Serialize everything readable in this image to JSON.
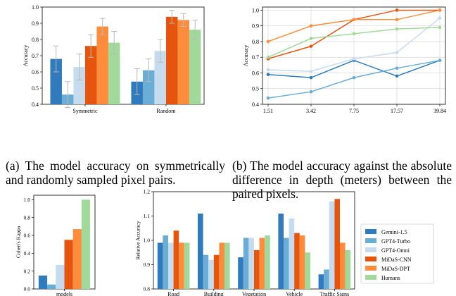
{
  "captions": {
    "a": "(a) The model accuracy on symmetrically and randomly sampled pixel pairs.",
    "b": "(b) The model accuracy against the absolute difference in depth (meters) between the paired pixels."
  },
  "legend": {
    "position": "right",
    "entries": [
      "Gemini-1.5",
      "GPT4-Turbo",
      "GPT4-Omni",
      "MiDaS-CNN",
      "MiDaS-DPT",
      "Humans"
    ]
  },
  "colors": {
    "Gemini-1.5": "#2f7bbd",
    "GPT4-Turbo": "#6aaed6",
    "GPT4-Omni": "#c7dbef",
    "MiDaS-CNN": "#e6550d",
    "MiDaS-DPT": "#fd8d3c",
    "Humans": "#a1d99b"
  },
  "chart_data": [
    {
      "id": "a",
      "type": "bar",
      "ylabel": "Accuracy",
      "ylim": [
        0.4,
        1.0
      ],
      "yticks": [
        "0.4",
        "0.5",
        "0.6",
        "0.7",
        "0.8",
        "0.9",
        "1.0"
      ],
      "categories": [
        "Symmetric",
        "Random"
      ],
      "error_bars": true,
      "series": [
        {
          "name": "Gemini-1.5",
          "values": [
            0.68,
            0.54
          ],
          "errors": [
            0.08,
            0.08
          ]
        },
        {
          "name": "GPT4-Turbo",
          "values": [
            0.46,
            0.61
          ],
          "errors": [
            0.08,
            0.07
          ]
        },
        {
          "name": "GPT4-Omni",
          "values": [
            0.63,
            0.73
          ],
          "errors": [
            0.08,
            0.07
          ]
        },
        {
          "name": "MiDaS-CNN",
          "values": [
            0.76,
            0.94
          ],
          "errors": [
            0.07,
            0.04
          ]
        },
        {
          "name": "MiDaS-DPT",
          "values": [
            0.88,
            0.92
          ],
          "errors": [
            0.05,
            0.04
          ]
        },
        {
          "name": "Humans",
          "values": [
            0.78,
            0.86
          ],
          "errors": [
            0.07,
            0.06
          ]
        }
      ]
    },
    {
      "id": "b",
      "type": "line",
      "ylabel": "Accuracy",
      "ylim": [
        0.4,
        1.02
      ],
      "yticks": [
        "0.4",
        "0.5",
        "0.6",
        "0.7",
        "0.8",
        "0.9",
        "1.0"
      ],
      "x": [
        "1.51",
        "3.42",
        "7.75",
        "17.57",
        "39.84"
      ],
      "grid": true,
      "series": [
        {
          "name": "Gemini-1.5",
          "values": [
            0.59,
            0.57,
            0.68,
            0.58,
            0.68
          ]
        },
        {
          "name": "GPT4-Turbo",
          "values": [
            0.44,
            0.48,
            0.57,
            0.63,
            0.68
          ]
        },
        {
          "name": "GPT4-Omni",
          "values": [
            0.62,
            0.61,
            0.69,
            0.73,
            0.95
          ]
        },
        {
          "name": "MiDaS-CNN",
          "values": [
            0.69,
            0.77,
            0.94,
            1.0,
            1.0
          ]
        },
        {
          "name": "MiDaS-DPT",
          "values": [
            0.8,
            0.9,
            0.94,
            0.94,
            1.0
          ]
        },
        {
          "name": "Humans",
          "values": [
            0.7,
            0.82,
            0.85,
            0.88,
            0.89
          ]
        }
      ]
    },
    {
      "id": "c",
      "type": "bar",
      "ylabel": "Cohen's Kappa",
      "ylim": [
        0.0,
        1.05
      ],
      "yticks": [
        "0.0",
        "0.2",
        "0.4",
        "0.6",
        "0.8",
        "1.0"
      ],
      "categories": [
        "models"
      ],
      "series": [
        {
          "name": "Gemini-1.5",
          "values": [
            0.15
          ]
        },
        {
          "name": "GPT4-Turbo",
          "values": [
            0.05
          ]
        },
        {
          "name": "GPT4-Omni",
          "values": [
            0.27
          ]
        },
        {
          "name": "MiDaS-CNN",
          "values": [
            0.55
          ]
        },
        {
          "name": "MiDaS-DPT",
          "values": [
            0.67
          ]
        },
        {
          "name": "Humans",
          "values": [
            1.0
          ]
        }
      ]
    },
    {
      "id": "d",
      "type": "bar",
      "ylabel": "Relative Accuracy",
      "ylim": [
        0.8,
        1.2
      ],
      "yticks": [
        "0.8",
        "0.9",
        "1.0",
        "1.1",
        "1.2"
      ],
      "categories": [
        "Road",
        "Building",
        "Vegetation",
        "Vehicle",
        "Traffic Signs"
      ],
      "series": [
        {
          "name": "Gemini-1.5",
          "values": [
            0.99,
            1.11,
            0.93,
            1.11,
            0.86
          ]
        },
        {
          "name": "GPT4-Turbo",
          "values": [
            1.02,
            0.94,
            1.01,
            1.01,
            0.88
          ]
        },
        {
          "name": "GPT4-Omni",
          "values": [
            0.99,
            0.92,
            1.01,
            1.09,
            1.16
          ]
        },
        {
          "name": "MiDaS-CNN",
          "values": [
            1.04,
            0.94,
            0.96,
            1.03,
            1.17
          ]
        },
        {
          "name": "MiDaS-DPT",
          "values": [
            0.99,
            0.99,
            1.01,
            1.02,
            0.99
          ]
        },
        {
          "name": "Humans",
          "values": [
            0.99,
            0.99,
            1.02,
            0.95,
            0.96
          ]
        }
      ]
    }
  ]
}
